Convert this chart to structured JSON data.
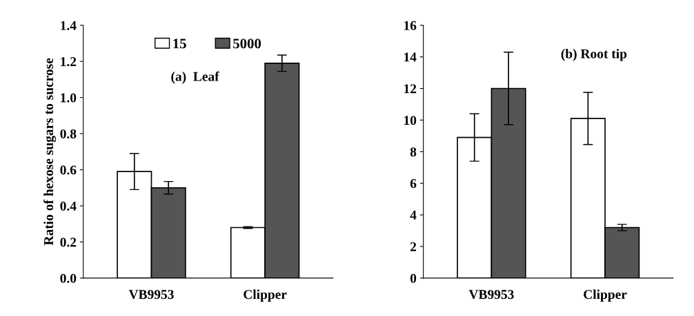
{
  "chart_data": [
    {
      "type": "bar",
      "ylabel": "Ratio of hexose sugars to sucrose",
      "annotations": [
        "(a)  Leaf"
      ],
      "categories": [
        "VB9953",
        "Clipper"
      ],
      "series": [
        {
          "name": "15",
          "color": "#ffffff",
          "values": [
            0.59,
            0.28
          ],
          "errors": [
            0.1,
            0.005
          ]
        },
        {
          "name": "5000",
          "color": "#555555",
          "values": [
            0.5,
            1.19
          ],
          "errors": [
            0.035,
            0.045
          ]
        }
      ],
      "ylim": [
        0,
        1.4
      ],
      "yticks": [
        {
          "value": 0,
          "label": "0.0"
        },
        0.2,
        0.4,
        0.6,
        0.8,
        {
          "value": 1,
          "label": "1.0"
        },
        1.2,
        1.4
      ],
      "legend": "top",
      "grid": false
    },
    {
      "type": "bar",
      "annotations": [
        "(b) Root tip"
      ],
      "categories": [
        "VB9953",
        "Clipper"
      ],
      "series": [
        {
          "color": "#ffffff",
          "values": [
            8.9,
            10.1
          ],
          "errors": [
            1.5,
            1.65
          ]
        },
        {
          "color": "#555555",
          "values": [
            12.0,
            3.2
          ],
          "errors": [
            2.3,
            0.2
          ]
        }
      ],
      "ylim": [
        0,
        16
      ],
      "yticks": [
        0,
        2,
        4,
        6,
        8,
        10,
        12,
        14,
        16
      ],
      "grid": false
    }
  ]
}
